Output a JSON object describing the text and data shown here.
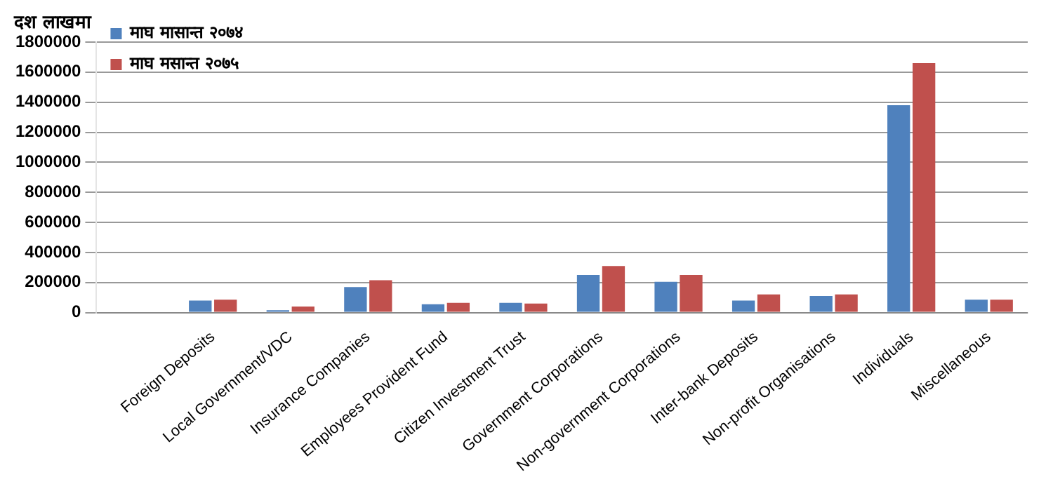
{
  "chart_data": {
    "type": "bar",
    "ylabel": "दश लाखमा",
    "categories": [
      null,
      "Foreign Deposits",
      "Local Government/VDC",
      "Insurance Companies",
      "Employees Provident Fund",
      "Citizen Investment Trust",
      "Government Corporations",
      "Non-government Corporations",
      "Inter-bank Deposits",
      "Non-profit Organisations",
      "Individuals",
      "Miscellaneous"
    ],
    "series": [
      {
        "name": "माघ मासान्त २०७४",
        "color": "#4f81bd",
        "values": [
          null,
          80000,
          15000,
          170000,
          55000,
          65000,
          250000,
          205000,
          80000,
          110000,
          1380000,
          85000
        ]
      },
      {
        "name": "माघ मसान्त २०७५",
        "color": "#c0504d",
        "values": [
          null,
          85000,
          40000,
          215000,
          65000,
          60000,
          310000,
          250000,
          120000,
          120000,
          1660000,
          85000
        ]
      }
    ],
    "ylim": [
      0,
      1800000
    ],
    "yticks": [
      0,
      200000,
      400000,
      600000,
      800000,
      1000000,
      1200000,
      1400000,
      1600000,
      1800000
    ],
    "grid": "y",
    "legend": "top left"
  }
}
